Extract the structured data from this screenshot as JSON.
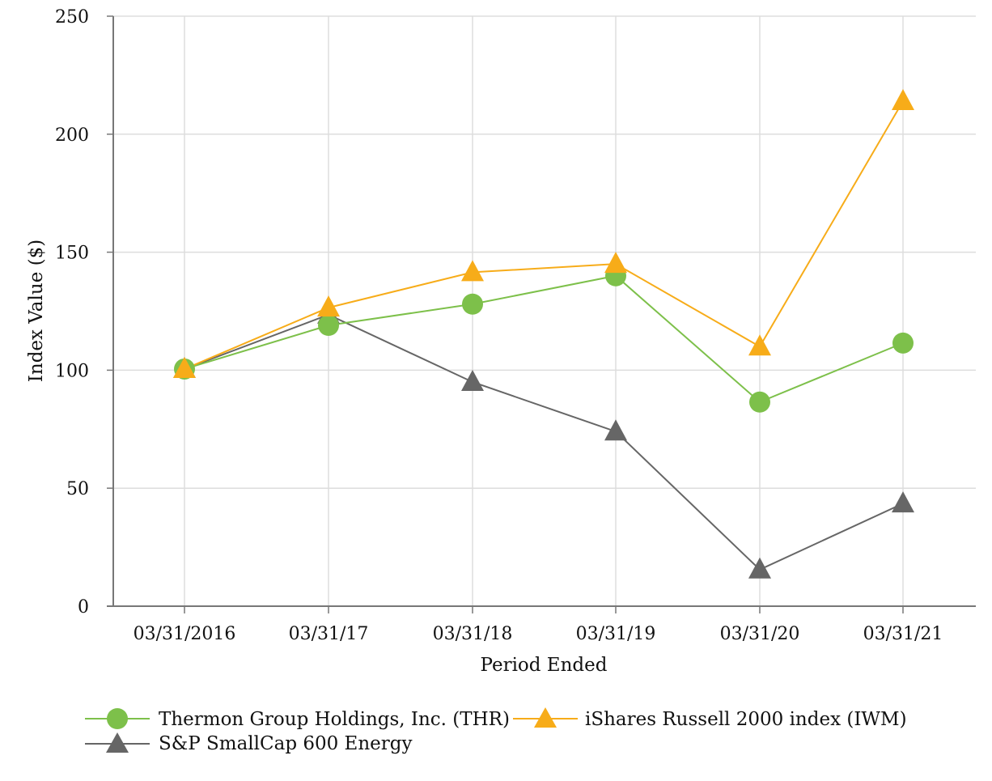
{
  "chart_data": {
    "type": "line",
    "title": "",
    "xlabel": "Period Ended",
    "ylabel": "Index Value ($)",
    "categories": [
      "03/31/2016",
      "03/31/17",
      "03/31/18",
      "03/31/19",
      "03/31/20",
      "03/31/21"
    ],
    "ylim": [
      0,
      250
    ],
    "yticks": [
      0,
      50,
      100,
      150,
      200,
      250
    ],
    "grid": true,
    "legend_position": "bottom",
    "series": [
      {
        "name": "Thermon Group Holdings, Inc. (THR)",
        "marker": "circle",
        "color": "#7dc04a",
        "values": [
          100.5,
          119,
          128,
          140,
          86.5,
          111.5
        ]
      },
      {
        "name": "iShares Russell 2000 index (IWM)",
        "marker": "triangle",
        "color": "#f7ac19",
        "values": [
          100.5,
          126.5,
          141.5,
          145,
          110,
          214
        ]
      },
      {
        "name": "S&P SmallCap 600 Energy",
        "marker": "triangle",
        "color": "#666666",
        "values": [
          100.5,
          123.5,
          95,
          74,
          15.5,
          43.5
        ]
      }
    ]
  }
}
